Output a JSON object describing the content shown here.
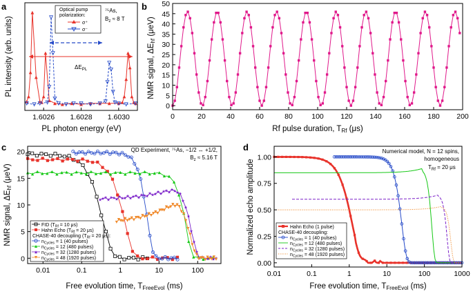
{
  "chart_data": [
    {
      "panel": "a",
      "type": "line",
      "xlabel": "PL photon energy (eV)",
      "ylabel": "PL intensity (arb. units)",
      "xlim": [
        1.6025,
        1.6031
      ],
      "xticks": [
        "1.6026",
        "1.6028",
        "1.6030"
      ],
      "legend_title": "Optical pump polarization:",
      "annotation": "75As, Bz ≈ 8 T",
      "span_label": "ΔE_PL",
      "series": [
        {
          "name": "σ+",
          "color": "#e8322a",
          "marker": "triangle-up",
          "x": [
            1.60251,
            1.60252,
            1.60253,
            1.60254,
            1.60256,
            1.60258,
            1.60259,
            1.6026,
            1.60261,
            1.60263,
            1.60266,
            1.6027,
            1.60275,
            1.6028,
            1.60285,
            1.6029,
            1.60295,
            1.603,
            1.60302,
            1.60303,
            1.60304,
            1.60305,
            1.60306,
            1.60307,
            1.60308,
            1.60309
          ],
          "y": [
            0.05,
            0.1,
            0.35,
            0.97,
            0.3,
            0.05,
            0.04,
            0.1,
            0.55,
            0.06,
            0.03,
            0.02,
            0.03,
            0.02,
            0.03,
            0.03,
            0.03,
            0.03,
            0.04,
            0.1,
            0.28,
            0.55,
            0.4,
            0.1,
            0.04,
            0.03
          ]
        },
        {
          "name": "σ−",
          "color": "#2449c8",
          "marker": "triangle-down",
          "x": [
            1.60251,
            1.60255,
            1.60258,
            1.60262,
            1.60263,
            1.60264,
            1.60265,
            1.60266,
            1.60268,
            1.60272,
            1.60276,
            1.6028,
            1.60285,
            1.6029,
            1.60293,
            1.60294,
            1.60295,
            1.60296,
            1.60297,
            1.60298,
            1.603,
            1.60304,
            1.60309
          ],
          "y": [
            0.03,
            0.02,
            0.03,
            0.04,
            0.2,
            0.92,
            0.55,
            0.08,
            0.03,
            0.02,
            0.03,
            0.03,
            0.02,
            0.03,
            0.05,
            0.25,
            0.45,
            0.38,
            0.15,
            0.04,
            0.03,
            0.02,
            0.03
          ]
        }
      ]
    },
    {
      "panel": "b",
      "type": "line",
      "xlabel": "Rf pulse duration, T_Rf (μs)",
      "ylabel": "NMR signal, ΔE_hf (μeV)",
      "xlim": [
        0,
        200
      ],
      "ylim": [
        -2,
        50
      ],
      "xticks": [
        0,
        20,
        40,
        60,
        80,
        100,
        120,
        140,
        160,
        180,
        200
      ],
      "yticks": [
        0,
        5,
        10,
        15,
        20,
        25,
        30,
        35,
        40,
        45,
        50
      ],
      "series": [
        {
          "name": "Rabi oscillation",
          "color": "#e0188a",
          "marker": "square",
          "period_us": 20.5,
          "amplitude_ueV": 46,
          "x_start": 0,
          "x_end": 199,
          "x_step": 1.5
        }
      ]
    },
    {
      "panel": "c",
      "type": "line",
      "xscale": "log",
      "xlabel": "Free evolution time, T_FreeEvol (ms)",
      "ylabel": "NMR signal, ΔE_hf (μeV)",
      "xlim": [
        0.004,
        400
      ],
      "ylim": [
        -1,
        21
      ],
      "xticks": [
        "0.01",
        "0.1",
        "1",
        "10",
        "100"
      ],
      "annotation_1": "QD Experiment, 75As, −1/2 ↔ +1/2,",
      "annotation_2": "Bz ≈ 5.16 T",
      "legend": [
        "FID (T_Rf = 10 μs)",
        "Hahn Echo (T_Rf = 20 μs)",
        "CHASE-40 decoupling (T_Rf = 20 μs):",
        "n_Cycles = 1 (40 pulses)",
        "n_Cycles = 12 (480 pulses)",
        "n_Cycles = 32 (1280 pulses)",
        "n_Cycles = 48 (1920 pulses)"
      ],
      "series": [
        {
          "name": "FID",
          "color": "#000000",
          "marker": "square-open",
          "t2": 0.35,
          "p": 1.8,
          "a0": 19.5,
          "xmin": 0.004,
          "xmax": 5
        },
        {
          "name": "Hahn Echo",
          "color": "#e8322a",
          "marker": "square",
          "t2": 1.3,
          "p": 2.0,
          "a0": 18.5,
          "xmin": 0.004,
          "xmax": 30
        },
        {
          "name": "nCycles=1",
          "color": "#2449c8",
          "marker": "circle-open",
          "t2": 5.0,
          "p": 3.0,
          "a0": 19.8,
          "xmin": 0.06,
          "xmax": 30
        },
        {
          "name": "nCycles=12",
          "color": "#14c814",
          "marker": "triangle-up",
          "t2": 50,
          "p": 3.0,
          "a0": 16.0,
          "xmin": 0.004,
          "xmax": 250
        },
        {
          "name": "nCycles=32",
          "color": "#7a1fc8",
          "marker": "star",
          "t2": 70,
          "p": 3.0,
          "a0": 11.0,
          "xmin": 0.3,
          "xmax": 300
        },
        {
          "name": "nCycles=48",
          "color": "#f08a2c",
          "marker": "triangle-down",
          "t2": 65,
          "p": 3.0,
          "a0": 6.5,
          "xmin": 0.8,
          "xmax": 300
        }
      ]
    },
    {
      "panel": "d",
      "type": "line",
      "xscale": "log",
      "xlabel": "Free evolution time, T_FreeEvol (ms)",
      "ylabel": "Normalized echo amplitude",
      "xlim": [
        0.01,
        1000
      ],
      "ylim": [
        -0.04,
        1.1
      ],
      "xticks": [
        "0.01",
        "0.1",
        "1",
        "10",
        "100",
        "1000"
      ],
      "yticks": [
        "0.00",
        "0.25",
        "0.50",
        "0.75",
        "1.00"
      ],
      "annotation_1": "Numerical model, N = 12 spins,",
      "annotation_2": "homogeneous",
      "annotation_3": "T_Rf = 20 μs",
      "legend": [
        "Hahn Echo (1 pulse)",
        "CHASE-40 decoupling:",
        "n_Cycles = 1 (40 pulses)",
        "n_Cycles = 12 (480 pulses)",
        "n_Cycles = 32 (1280 pulses)",
        "n_Cycles = 48 (1920 pulses)"
      ],
      "series": [
        {
          "name": "Hahn Echo (1 pulse)",
          "color": "#e8322a",
          "style": "thick-dots",
          "a0": 1.0,
          "t2": 1.2,
          "p": 2.0,
          "xmin": 0.01,
          "xmax": 1000
        },
        {
          "name": "nCycles=1",
          "color": "#2449c8",
          "style": "circles",
          "a0": 1.0,
          "t2": 25,
          "p": 3.5,
          "xmin": 0.4,
          "xmax": 1000
        },
        {
          "name": "nCycles=12",
          "color": "#14c814",
          "style": "solid",
          "a0": 0.85,
          "t2": 150,
          "p": 6.0,
          "xmin": 0.01,
          "xmax": 1000
        },
        {
          "name": "nCycles=32",
          "color": "#7a1fc8",
          "style": "dashed",
          "a0": 0.6,
          "t2": 380,
          "p": 7.0,
          "xmin": 0.03,
          "xmax": 1000
        },
        {
          "name": "nCycles=48",
          "color": "#f08a2c",
          "style": "dotted",
          "a0": 0.5,
          "t2": 480,
          "p": 7.0,
          "xmin": 0.01,
          "xmax": 1000
        }
      ]
    }
  ],
  "labels": {
    "a_panel": "a",
    "b_panel": "b",
    "c_panel": "c",
    "d_panel": "d",
    "a_ylabel": "PL intensity (arb. units)",
    "a_xlabel": "PL photon energy (eV)",
    "a_legend_title_1": "Optical pump",
    "a_legend_title_2": "polarization:",
    "a_leg_plus": "σ⁺",
    "a_leg_minus": "σ⁻",
    "a_note_1": "⁷⁵As,",
    "a_note_2": "B",
    "a_note_2b": "z",
    "a_note_2c": " ≈ 8 T",
    "a_dE": "ΔE",
    "a_dE_sub": "PL",
    "b_ylabel": "NMR signal, ΔE",
    "b_ylabel_sub": "hf",
    "b_ylabel_end": " (μeV)",
    "b_xlabel": "Rf pulse duration, T",
    "b_xlabel_sub": "Rf",
    "b_xlabel_end": " (μs)",
    "c_ylabel": "NMR signal, ΔE",
    "c_ylabel_sub": "hf",
    "c_ylabel_end": " (μeV)",
    "c_xlabel": "Free evolution time, T",
    "c_xlabel_sub": "FreeEvol",
    "c_xlabel_end": " (ms)",
    "c_note_1": "QD Experiment, ⁷⁵As, −1/2 ↔ +1/2,",
    "c_note_2": "B",
    "c_note_2b": "z",
    "c_note_2c": " ≈ 5.16 T",
    "c_leg_fid": "FID (T",
    "c_leg_fid_sub": "Rf",
    "c_leg_fid_end": " = 10 μs)",
    "c_leg_hahn": "Hahn Echo (T",
    "c_leg_hahn_sub": "Rf",
    "c_leg_hahn_end": " = 20 μs)",
    "c_leg_chase": "CHASE-40 decoupling (T",
    "c_leg_chase_sub": "Rf",
    "c_leg_chase_end": " = 20 μs):",
    "c_leg_n1": "n",
    "c_leg_sub": "Cycles",
    "c_leg_n1_end": " = 1 (40 pulses)",
    "c_leg_n12_end": " = 12 (480 pulses)",
    "c_leg_n32_end": " = 32 (1280 pulses)",
    "c_leg_n48_end": " = 48 (1920 pulses)",
    "d_ylabel": "Normalized echo amplitude",
    "d_xlabel": "Free evolution time, T",
    "d_xlabel_sub": "FreeEvol",
    "d_xlabel_end": " (ms)",
    "d_note_1": "Numerical model, N = 12 spins,",
    "d_note_2": "homogeneous",
    "d_note_3": "T",
    "d_note_3b": "Rf",
    "d_note_3c": " = 20 μs",
    "d_leg_hahn": "Hahn Echo (1 pulse)",
    "d_leg_chase": "CHASE-40 decoupling:"
  }
}
